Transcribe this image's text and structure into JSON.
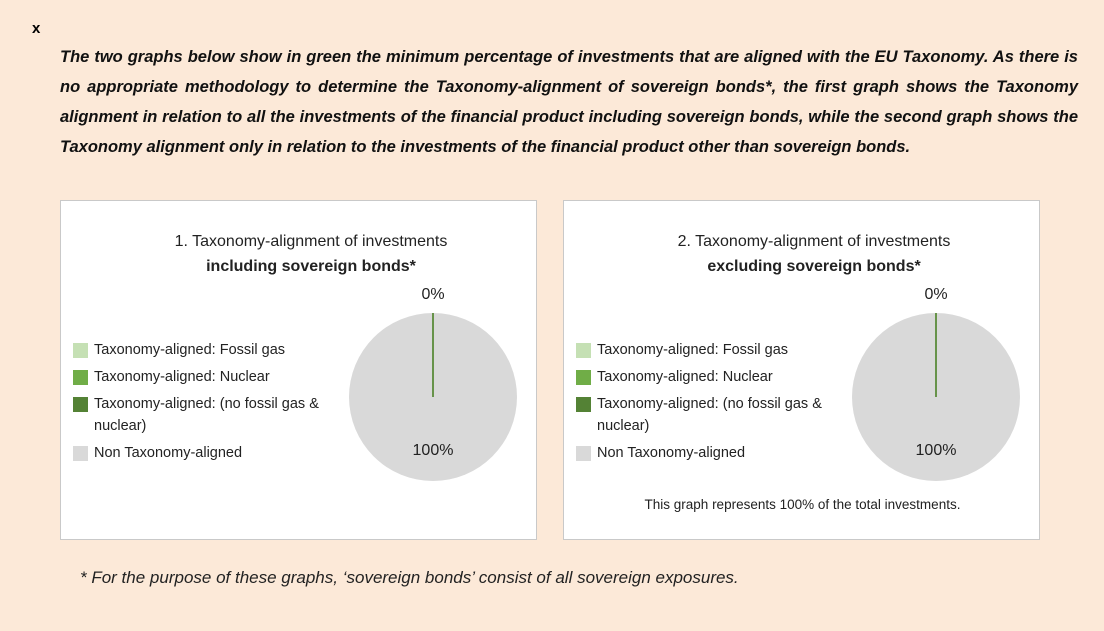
{
  "close": "x",
  "intro": "The two graphs below show in green the minimum percentage of investments that are aligned with the EU Taxonomy. As there is no appropriate methodology to determine the Taxonomy-alignment of sovereign bonds*, the first graph shows the Taxonomy alignment in relation to all the investments of the financial product including sovereign bonds, while the second graph shows the Taxonomy alignment only in relation to the investments of the financial product other than sovereign bonds.",
  "chart_data": [
    {
      "type": "pie",
      "title": "1. Taxonomy-alignment of investments",
      "subtitle": "including sovereign bonds*",
      "categories": [
        "Taxonomy-aligned: Fossil gas",
        "Taxonomy-aligned: Nuclear",
        "Taxonomy-aligned: (no fossil gas & nuclear)",
        "Non Taxonomy-aligned"
      ],
      "values": [
        0,
        0,
        0,
        100
      ],
      "value_labels": [
        null,
        null,
        "0%",
        "100%"
      ],
      "colors": [
        "#c5e0b4",
        "#70ad47",
        "#548235",
        "#d9d9d9"
      ],
      "legend": "left"
    },
    {
      "type": "pie",
      "title": "2. Taxonomy-alignment of investments",
      "subtitle": "excluding sovereign bonds*",
      "categories": [
        "Taxonomy-aligned: Fossil gas",
        "Taxonomy-aligned: Nuclear",
        "Taxonomy-aligned: (no fossil gas & nuclear)",
        "Non Taxonomy-aligned"
      ],
      "values": [
        0,
        0,
        0,
        100
      ],
      "value_labels": [
        null,
        null,
        "0%",
        "100%"
      ],
      "colors": [
        "#c5e0b4",
        "#70ad47",
        "#548235",
        "#d9d9d9"
      ],
      "legend": "left",
      "note": "This graph represents 100% of the total investments."
    }
  ],
  "footnote": "* For the purpose of these graphs, ‘sovereign bonds’ consist of all sovereign exposures."
}
